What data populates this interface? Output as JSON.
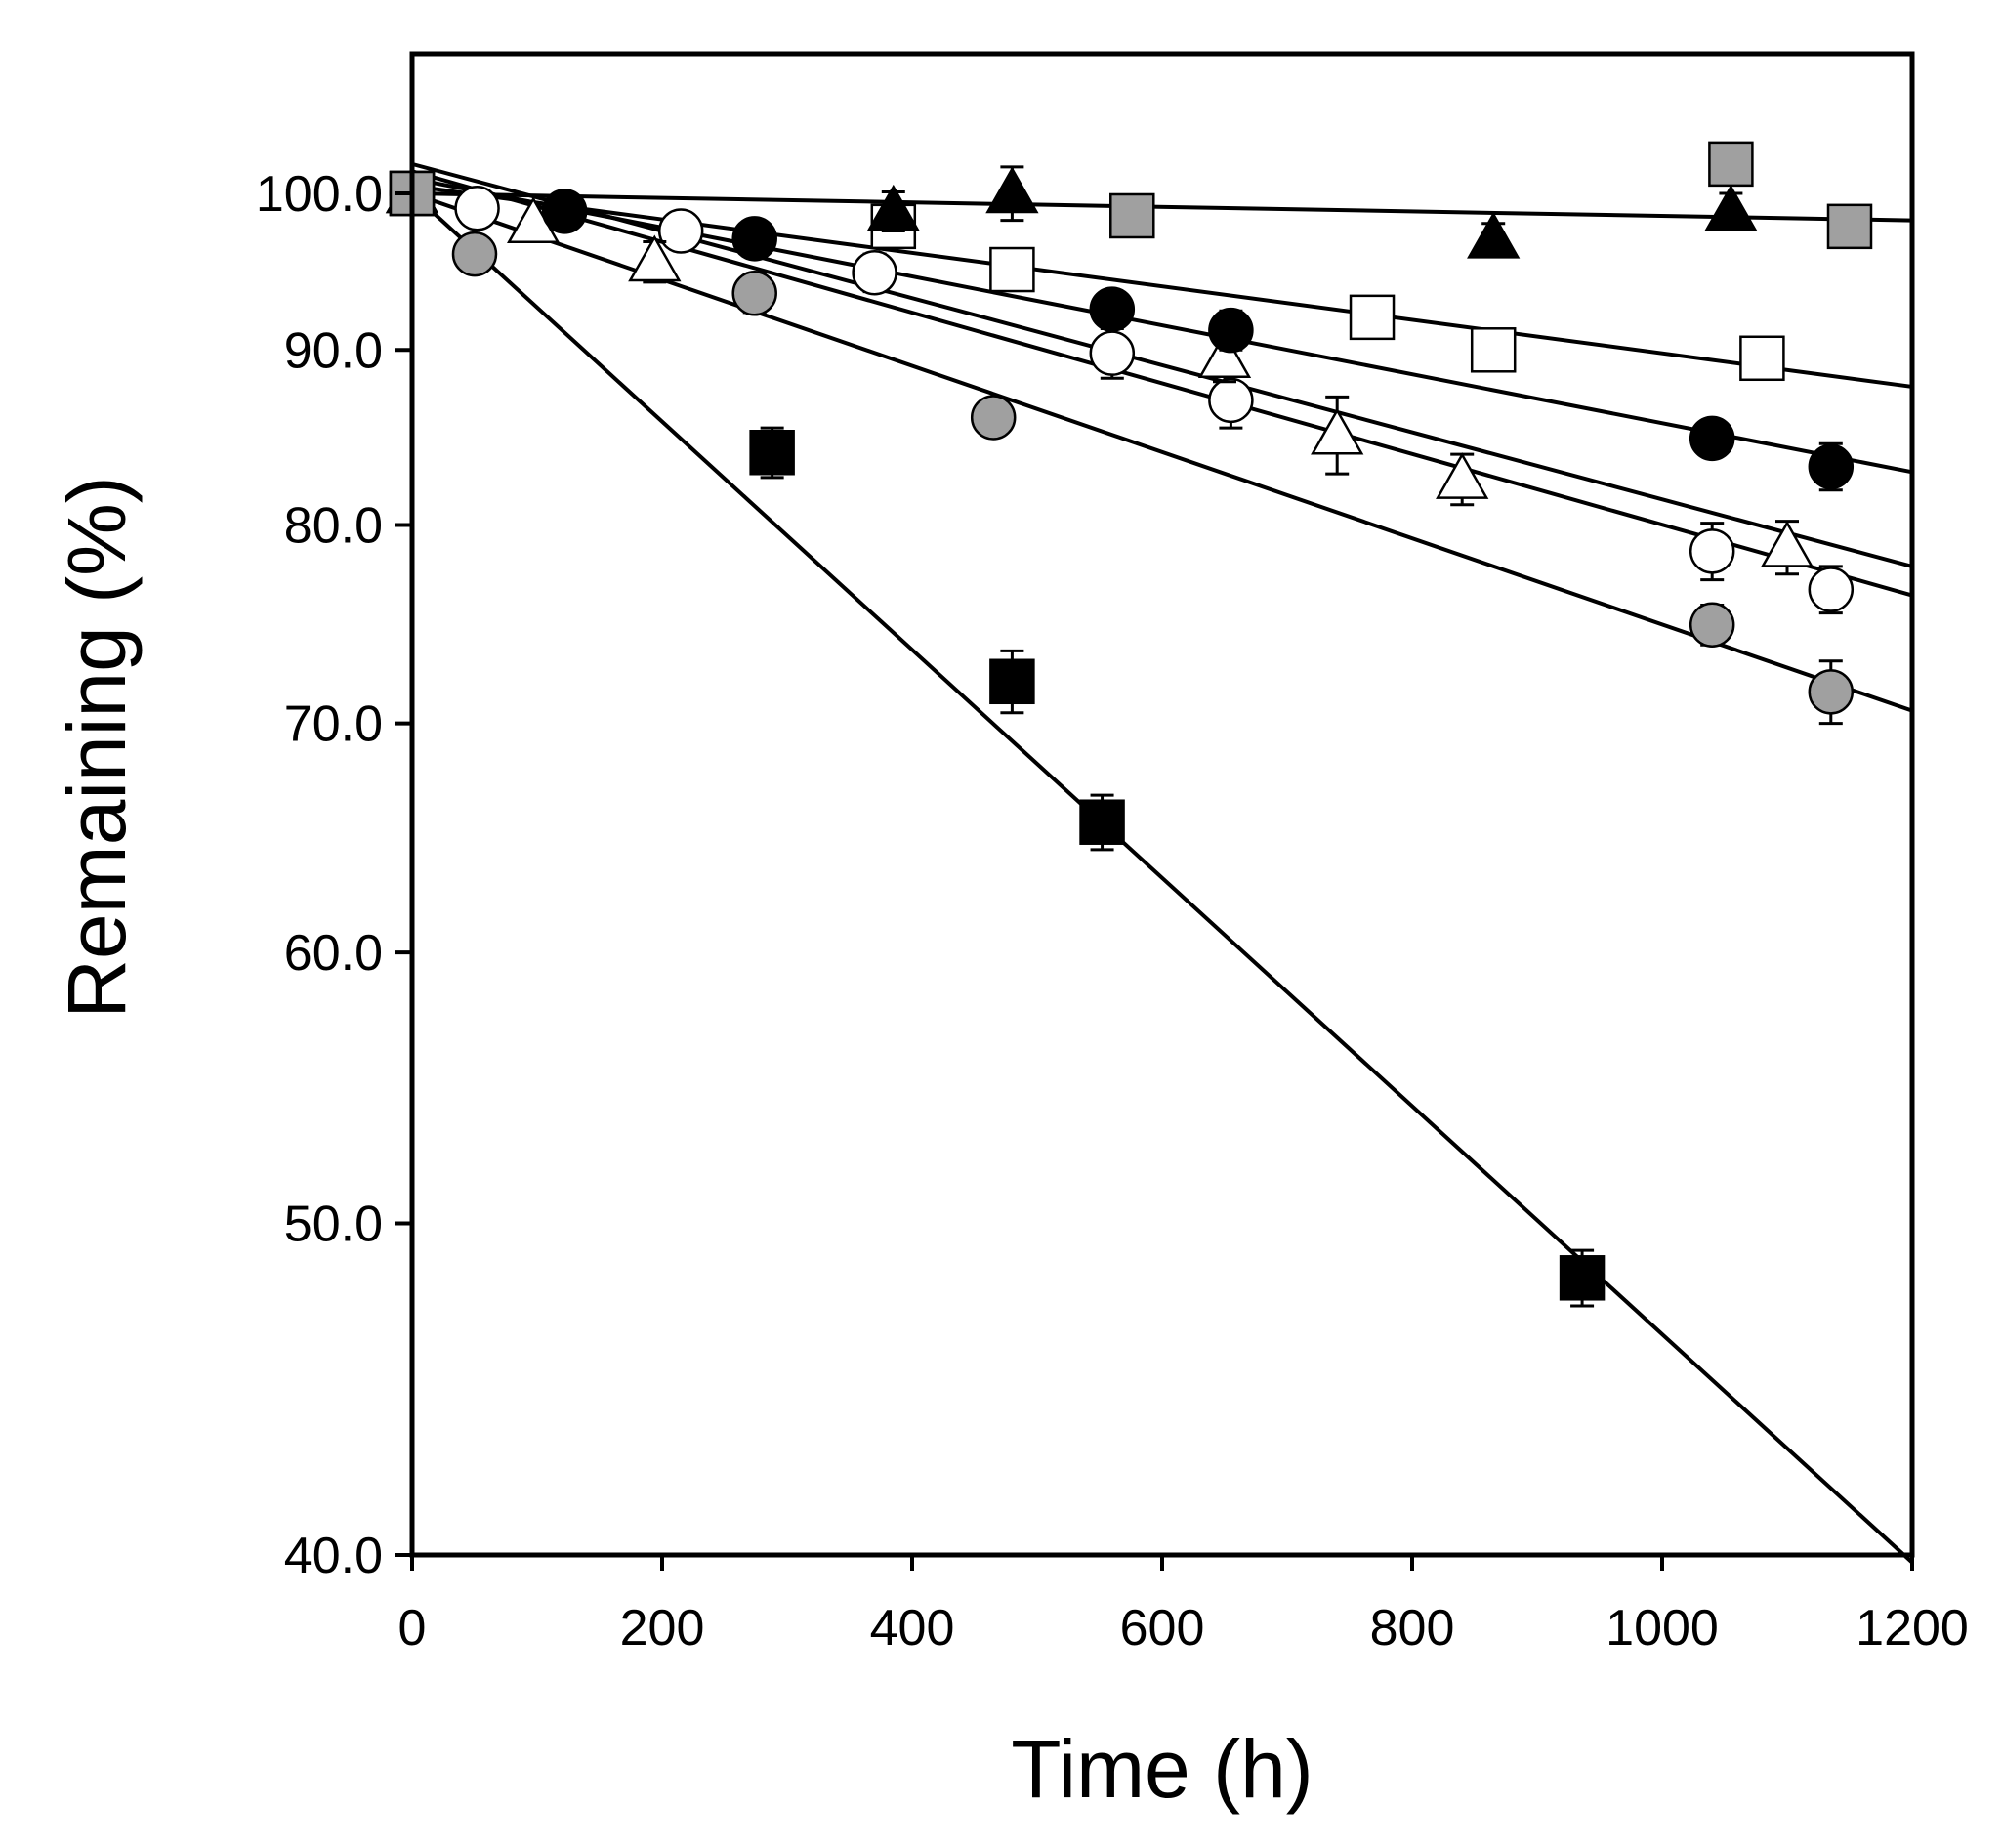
{
  "chart_data": {
    "type": "scatter",
    "title": "",
    "xlabel": "Time (h)",
    "ylabel": "Remaining (%)",
    "yscale": "log",
    "xlim": [
      0,
      1200
    ],
    "ylim": [
      40,
      108
    ],
    "xticks": [
      0,
      200,
      400,
      600,
      800,
      1000,
      1200
    ],
    "xtick_labels": [
      "0",
      "200",
      "400",
      "600",
      "800",
      "1000",
      "1200"
    ],
    "yticks": [
      40,
      50,
      60,
      70,
      80,
      90,
      100
    ],
    "ytick_labels": [
      "40.0",
      "50.0",
      "60.0",
      "70.0",
      "80.0",
      "90.0",
      "100.0"
    ],
    "grid": false,
    "series": [
      {
        "name": "black squares",
        "marker": "square",
        "fill": "#000000",
        "points": [
          {
            "x": 0,
            "y": 100.0
          },
          {
            "x": 288,
            "y": 84.0,
            "err": 1.4
          },
          {
            "x": 480,
            "y": 72.0,
            "err": 1.5
          },
          {
            "x": 552,
            "y": 65.5,
            "err": 1.2
          },
          {
            "x": 936,
            "y": 48.2,
            "err": 0.9
          }
        ],
        "fit": {
          "y0": 100.0,
          "y1200": 39.8
        }
      },
      {
        "name": "gray circles",
        "marker": "circle",
        "fill": "#a0a0a0",
        "points": [
          {
            "x": 0,
            "y": 100.0
          },
          {
            "x": 50,
            "y": 96.0
          },
          {
            "x": 274,
            "y": 93.5,
            "err": 1.2
          },
          {
            "x": 465,
            "y": 86.0,
            "err": 1.0
          },
          {
            "x": 1040,
            "y": 74.8,
            "err": 1.0
          },
          {
            "x": 1135,
            "y": 71.5,
            "err": 1.5
          }
        ],
        "fit": {
          "y0": 100.0,
          "y1200": 70.6
        }
      },
      {
        "name": "open circles",
        "marker": "circle",
        "fill": "#ffffff",
        "points": [
          {
            "x": 0,
            "y": 100.0
          },
          {
            "x": 52,
            "y": 99.0
          },
          {
            "x": 215,
            "y": 97.5
          },
          {
            "x": 370,
            "y": 94.8,
            "err": 1.2
          },
          {
            "x": 560,
            "y": 89.8,
            "err": 1.5
          },
          {
            "x": 655,
            "y": 87.0,
            "err": 1.6
          },
          {
            "x": 1040,
            "y": 78.6,
            "err": 1.5
          },
          {
            "x": 1135,
            "y": 76.6,
            "err": 1.2
          }
        ],
        "fit": {
          "y0": 101.5,
          "y1200": 76.3
        }
      },
      {
        "name": "open triangles",
        "marker": "triangle",
        "fill": "#ffffff",
        "points": [
          {
            "x": 0,
            "y": 100.0
          },
          {
            "x": 97,
            "y": 98.0
          },
          {
            "x": 194,
            "y": 95.5,
            "err": 1.3
          },
          {
            "x": 650,
            "y": 89.5,
            "err": 1.4
          },
          {
            "x": 740,
            "y": 85.0,
            "err": 2.2
          },
          {
            "x": 840,
            "y": 82.5,
            "err": 1.4
          },
          {
            "x": 1100,
            "y": 78.8,
            "err": 1.4
          }
        ],
        "fit": {
          "y0": 102.0,
          "y1200": 77.8
        }
      },
      {
        "name": "black circles",
        "marker": "circle",
        "fill": "#000000",
        "points": [
          {
            "x": 0,
            "y": 100.0
          },
          {
            "x": 122,
            "y": 98.8
          },
          {
            "x": 274,
            "y": 97.0
          },
          {
            "x": 560,
            "y": 92.5
          },
          {
            "x": 655,
            "y": 91.2,
            "err": 1.2
          },
          {
            "x": 1040,
            "y": 84.8
          },
          {
            "x": 1135,
            "y": 83.2,
            "err": 1.3
          }
        ],
        "fit": {
          "y0": 101.0,
          "y1200": 82.9
        }
      },
      {
        "name": "open squares",
        "marker": "square",
        "fill": "#ffffff",
        "points": [
          {
            "x": 0,
            "y": 100.0
          },
          {
            "x": 385,
            "y": 97.8
          },
          {
            "x": 480,
            "y": 95.0,
            "err": 1.2
          },
          {
            "x": 768,
            "y": 92.0,
            "err": 1.2
          },
          {
            "x": 865,
            "y": 90.0,
            "err": 1.2
          },
          {
            "x": 1080,
            "y": 89.5
          }
        ],
        "fit": {
          "y0": 100.5,
          "y1200": 87.8
        }
      },
      {
        "name": "black triangles",
        "marker": "triangle",
        "fill": "#000000",
        "points": [
          {
            "x": 0,
            "y": 100.0
          },
          {
            "x": 385,
            "y": 98.8,
            "err": 1.3
          },
          {
            "x": 480,
            "y": 100.0,
            "err": 1.8
          },
          {
            "x": 865,
            "y": 97.0,
            "err": 1.0
          },
          {
            "x": 1055,
            "y": 98.8,
            "err": 1.2
          }
        ],
        "fit": {
          "y0": 100.0,
          "y1200": 98.2
        }
      },
      {
        "name": "gray squares",
        "marker": "square",
        "fill": "#a0a0a0",
        "points": [
          {
            "x": 0,
            "y": 100.0
          },
          {
            "x": 576,
            "y": 98.5,
            "err": 0.8
          },
          {
            "x": 1055,
            "y": 102.0
          },
          {
            "x": 1150,
            "y": 97.8
          }
        ],
        "fit": null
      }
    ]
  }
}
